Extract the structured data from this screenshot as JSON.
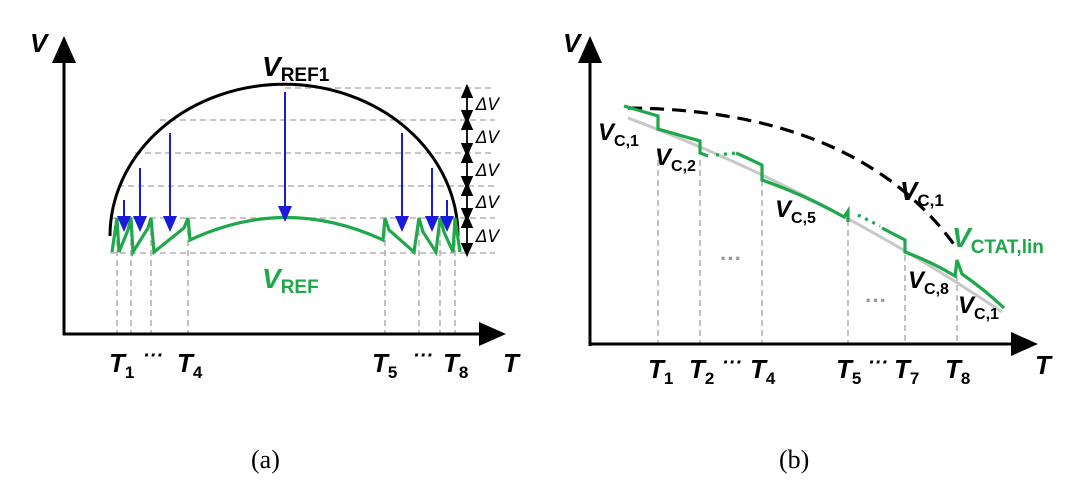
{
  "panel_a": {
    "y_axis_label": "V",
    "x_axis_label": "T",
    "vref1_label": "V",
    "vref1_sub": "REF1",
    "vref_label": "V",
    "vref_sub": "REF",
    "delta_v_labels": [
      "ΔV",
      "ΔV",
      "ΔV",
      "ΔV",
      "ΔV"
    ],
    "x_ticks": [
      {
        "main": "T",
        "sub": "1"
      },
      {
        "main": "···",
        "sub": ""
      },
      {
        "main": "T",
        "sub": "4"
      },
      {
        "main": "T",
        "sub": "5"
      },
      {
        "main": "···",
        "sub": ""
      },
      {
        "main": "T",
        "sub": "8"
      }
    ],
    "caption": "(a)"
  },
  "panel_b": {
    "y_axis_label": "V",
    "x_axis_label": "T",
    "curve_labels": [
      {
        "main": "V",
        "sub": "C,1"
      },
      {
        "main": "V",
        "sub": "C,2"
      },
      {
        "main": "V",
        "sub": "C,5"
      },
      {
        "main": "V",
        "sub": "C,1"
      },
      {
        "main": "V",
        "sub": "CTAT,lin"
      },
      {
        "main": "V",
        "sub": "C,8"
      },
      {
        "main": "V",
        "sub": "C,1"
      }
    ],
    "ellipses": [
      "···",
      "···"
    ],
    "x_ticks": [
      {
        "main": "T",
        "sub": "1"
      },
      {
        "main": "T",
        "sub": "2"
      },
      {
        "main": "···",
        "sub": ""
      },
      {
        "main": "T",
        "sub": "4"
      },
      {
        "main": "T",
        "sub": "5"
      },
      {
        "main": "···",
        "sub": ""
      },
      {
        "main": "T",
        "sub": "7"
      },
      {
        "main": "T",
        "sub": "8"
      }
    ],
    "caption": "(b)"
  },
  "colors": {
    "axis": "#000000",
    "vref1_curve": "#000000",
    "vref_curve": "#1fa84a",
    "arrows": "#1a1adb",
    "grid": "#b4b4b4",
    "ctat_dashed": "#000000",
    "ctat_grey": "#c8c8c8"
  }
}
